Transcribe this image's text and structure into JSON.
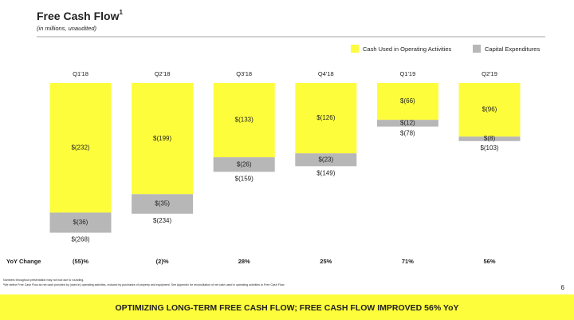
{
  "chart_data": {
    "type": "stacked_bar",
    "title": "Free Cash Flow",
    "title_note": "1",
    "subtitle": "(in millions, unaudited)",
    "categories": [
      "Q1'18",
      "Q2'18",
      "Q3'18",
      "Q4'18",
      "Q1'19",
      "Q2'19"
    ],
    "series": [
      {
        "name": "Cash Used in Operating Activities",
        "color": "#fdfd3c",
        "values": [
          -232,
          -199,
          -133,
          -126,
          -66,
          -96
        ],
        "value_labels": [
          "$(232)",
          "$(199)",
          "$(133)",
          "$(126)",
          "$(66)",
          "$(96)"
        ]
      },
      {
        "name": "Capital Expenditures",
        "color": "#b7b7b7",
        "values": [
          -36,
          -35,
          -26,
          -23,
          -12,
          -8
        ],
        "value_labels": [
          "$(36)",
          "$(35)",
          "$(26)",
          "$(23)",
          "$(12)",
          "$(8)"
        ]
      }
    ],
    "totals": {
      "values": [
        -268,
        -234,
        -159,
        -149,
        -78,
        -103
      ],
      "value_labels": [
        "$(268)",
        "$(234)",
        "$(159)",
        "$(149)",
        "$(78)",
        "$(103)"
      ]
    },
    "yoy": {
      "label": "YoY Change",
      "values": [
        -55,
        -2,
        28,
        25,
        71,
        56
      ],
      "value_labels": [
        "(55)%",
        "(2)%",
        "28%",
        "25%",
        "71%",
        "56%"
      ]
    },
    "footnotes": [
      "Numbers throughout presentation may not foot due to rounding.",
      "¹We define Free Cash Flow as net cash provided by (used in) operating activities, reduced by purchases of property and equipment. See Appendix for reconciliation of net cash used in operating activities to Free Cash Flow."
    ],
    "page_number": "6",
    "banner": "OPTIMIZING LONG-TERM FREE CASH FLOW; FREE CASH FLOW IMPROVED 56% YoY"
  }
}
